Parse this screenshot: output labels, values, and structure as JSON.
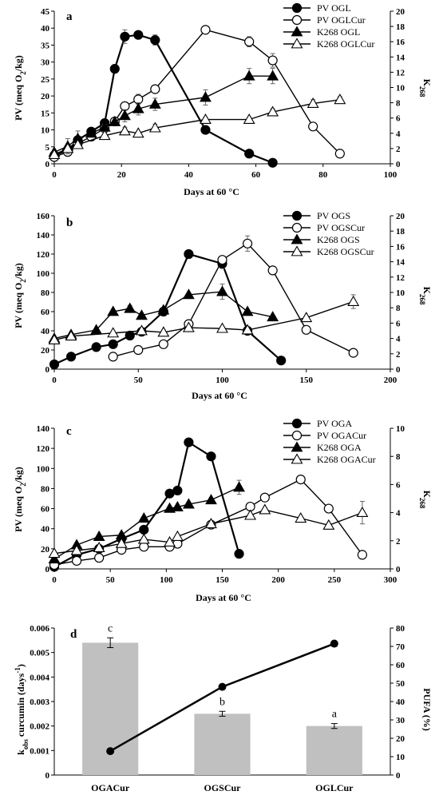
{
  "chart_data": [
    {
      "panel": "a",
      "type": "line",
      "xlabel": "Days at 60 °C",
      "ylabel": "PV (meq O₂/kg)",
      "y2label": "K268",
      "xlim": [
        0,
        100
      ],
      "xticks": [
        0,
        20,
        40,
        60,
        80,
        100
      ],
      "ylim": [
        0,
        45
      ],
      "yticks": [
        0,
        5,
        10,
        15,
        20,
        25,
        30,
        35,
        40,
        45
      ],
      "y2lim": [
        0,
        20
      ],
      "y2ticks": [
        0,
        2,
        4,
        6,
        8,
        10,
        12,
        14,
        16,
        18,
        20
      ],
      "legend_position": "top-right",
      "series": [
        {
          "name": "PV OGL",
          "axis": "left",
          "marker": "circle-filled",
          "x": [
            0,
            4,
            7,
            11,
            15,
            18,
            21,
            25,
            30,
            45,
            58,
            65
          ],
          "y": [
            2.5,
            4,
            7,
            9.5,
            12,
            28,
            37.5,
            38,
            36.5,
            10,
            3,
            0.3
          ],
          "err": [
            0,
            0,
            0,
            1,
            0,
            0,
            2,
            0,
            1.5,
            0,
            0,
            0
          ]
        },
        {
          "name": "PV OGLCur",
          "axis": "left",
          "marker": "circle-open",
          "x": [
            0,
            4,
            7,
            11,
            15,
            18,
            21,
            25,
            30,
            45,
            58,
            65,
            77,
            85
          ],
          "y": [
            2,
            3.5,
            6,
            8,
            10.5,
            12.5,
            17,
            19,
            22,
            39.5,
            36,
            30.5,
            11,
            3
          ],
          "err": [
            0,
            0,
            0,
            0,
            0,
            0,
            0,
            1.5,
            0,
            0,
            1.5,
            2,
            0,
            0
          ]
        },
        {
          "name": "K268 OGL",
          "axis": "right",
          "marker": "triangle-filled",
          "x": [
            0,
            4,
            7,
            11,
            15,
            18,
            21,
            25,
            30,
            45,
            58,
            65
          ],
          "y": [
            1.5,
            2.3,
            3.3,
            4,
            4.8,
            5.5,
            6.3,
            7.2,
            7.8,
            8.7,
            11.5,
            11.5
          ],
          "err": [
            0.3,
            1,
            1,
            0,
            0.4,
            0.5,
            0.8,
            0.8,
            0.8,
            1,
            1,
            1
          ]
        },
        {
          "name": "K268 OGLCur",
          "axis": "right",
          "marker": "triangle-open",
          "x": [
            0,
            4,
            7,
            15,
            21,
            25,
            30,
            45,
            58,
            65,
            77,
            85
          ],
          "y": [
            1.2,
            2,
            2.5,
            3.7,
            4.3,
            4,
            4.7,
            5.8,
            5.8,
            6.8,
            7.9,
            8.4
          ],
          "err": [
            0,
            0,
            0,
            0.5,
            0.5,
            0,
            0.5,
            0,
            0,
            0.4,
            0.5,
            0.4
          ]
        }
      ]
    },
    {
      "panel": "b",
      "type": "line",
      "xlabel": "Days at 60 °C",
      "ylabel": "PV (meq O₂/kg)",
      "y2label": "K268",
      "xlim": [
        0,
        200
      ],
      "xticks": [
        0,
        50,
        100,
        150,
        200
      ],
      "ylim": [
        0,
        160
      ],
      "yticks": [
        0,
        20,
        40,
        60,
        80,
        100,
        120,
        140,
        160
      ],
      "y2lim": [
        0,
        20
      ],
      "y2ticks": [
        0,
        2,
        4,
        6,
        8,
        10,
        12,
        14,
        16,
        18,
        20
      ],
      "legend_position": "top-right",
      "series": [
        {
          "name": "PV OGS",
          "axis": "left",
          "marker": "circle-filled",
          "x": [
            0,
            10,
            25,
            35,
            45,
            52,
            65,
            80,
            100,
            115,
            135
          ],
          "y": [
            5,
            13,
            23,
            26,
            35,
            39,
            60,
            120,
            110,
            40,
            9
          ],
          "err": [
            0,
            0,
            0,
            0,
            0,
            0,
            0,
            0,
            5,
            0,
            0
          ]
        },
        {
          "name": "PV OGSCur",
          "axis": "left",
          "marker": "circle-open",
          "x": [
            35,
            50,
            65,
            80,
            100,
            115,
            130,
            150,
            178
          ],
          "y": [
            13,
            20,
            26,
            47,
            114,
            131,
            103,
            41,
            17
          ],
          "err": [
            0,
            0,
            0,
            0,
            4,
            8,
            0,
            0,
            0
          ]
        },
        {
          "name": "K268 OGS",
          "axis": "right",
          "marker": "triangle-filled",
          "x": [
            0,
            10,
            25,
            35,
            45,
            52,
            65,
            80,
            100,
            115,
            130
          ],
          "y": [
            4,
            4.5,
            5.1,
            7.5,
            7.9,
            7.0,
            7.7,
            9.7,
            10.1,
            7.5,
            6.8
          ],
          "err": [
            0,
            0,
            0,
            0,
            0.4,
            0,
            0,
            0,
            1,
            0,
            0
          ]
        },
        {
          "name": "K268 OGSCur",
          "axis": "right",
          "marker": "triangle-open",
          "x": [
            0,
            10,
            35,
            52,
            65,
            80,
            100,
            115,
            150,
            178
          ],
          "y": [
            3.8,
            4.3,
            4.7,
            5.0,
            4.8,
            5.4,
            5.3,
            5.1,
            6.7,
            8.8
          ],
          "err": [
            0,
            0,
            0,
            0,
            0,
            0,
            0,
            0,
            0,
            0.9
          ]
        }
      ]
    },
    {
      "panel": "c",
      "type": "line",
      "xlabel": "Days at 60 °C",
      "ylabel": "PV (meq O₂/kg)",
      "y2label": "K268",
      "xlim": [
        0,
        300
      ],
      "xticks": [
        0,
        50,
        100,
        150,
        200,
        250,
        300
      ],
      "ylim": [
        0,
        140
      ],
      "yticks": [
        0,
        20,
        40,
        60,
        80,
        100,
        120,
        140
      ],
      "y2lim": [
        0,
        10
      ],
      "y2ticks": [
        0,
        2,
        4,
        6,
        8,
        10
      ],
      "legend_position": "top-right",
      "series": [
        {
          "name": "PV OGA",
          "axis": "left",
          "marker": "circle-filled",
          "x": [
            0,
            20,
            40,
            60,
            80,
            103,
            110,
            120,
            140,
            165
          ],
          "y": [
            2,
            14,
            20,
            30,
            39,
            75,
            78,
            126,
            112,
            15
          ],
          "err": [
            0,
            0,
            0,
            0,
            0,
            0,
            0,
            0,
            0,
            0
          ]
        },
        {
          "name": "PV OGACur",
          "axis": "left",
          "marker": "circle-open",
          "x": [
            0,
            20,
            40,
            60,
            80,
            103,
            110,
            140,
            175,
            188,
            220,
            245,
            275
          ],
          "y": [
            4,
            8,
            11,
            19,
            22,
            22,
            25,
            44,
            62,
            71,
            89,
            60,
            14
          ],
          "err": [
            0,
            0,
            0,
            0,
            0,
            0,
            0,
            0,
            0,
            0,
            0,
            0,
            0
          ]
        },
        {
          "name": "K268 OGA",
          "axis": "right",
          "marker": "triangle-filled",
          "x": [
            0,
            20,
            40,
            60,
            80,
            103,
            110,
            120,
            140,
            165
          ],
          "y": [
            0.7,
            1.7,
            2.3,
            2.4,
            3.6,
            4.3,
            4.4,
            4.6,
            4.9,
            5.8
          ],
          "err": [
            0,
            0,
            0,
            0,
            0,
            0,
            0,
            0,
            0,
            0.5
          ]
        },
        {
          "name": "K268 OGACur",
          "axis": "right",
          "marker": "triangle-open",
          "x": [
            0,
            20,
            40,
            60,
            80,
            103,
            110,
            140,
            175,
            188,
            220,
            245,
            275
          ],
          "y": [
            1.1,
            1.3,
            1.5,
            1.8,
            2.1,
            1.9,
            2.3,
            3.2,
            3.8,
            4.2,
            3.6,
            3.1,
            4.0
          ],
          "err": [
            0,
            0,
            0,
            0,
            0,
            0,
            0,
            0,
            0,
            0,
            0,
            0,
            0.8
          ]
        }
      ]
    },
    {
      "panel": "d",
      "type": "bar",
      "categories": [
        "OGACur",
        "OGSCur",
        "OGLCur"
      ],
      "ylabel": "k_obs curcumin (days⁻¹)",
      "y2label": "PUFA (%)",
      "ylim": [
        0,
        0.006
      ],
      "yticks": [
        0,
        0.001,
        0.002,
        0.003,
        0.004,
        0.005,
        0.006
      ],
      "y2lim": [
        0,
        80
      ],
      "y2ticks": [
        0,
        10,
        20,
        30,
        40,
        50,
        60,
        70,
        80
      ],
      "bar_color": "#c0c0c0",
      "bars": {
        "values": [
          0.0054,
          0.0025,
          0.002
        ],
        "err": [
          0.0002,
          0.0001,
          0.0001
        ],
        "labels": [
          "c",
          "b",
          "a"
        ]
      },
      "line": {
        "axis": "right",
        "values": [
          13,
          48,
          71.5
        ]
      }
    }
  ],
  "ui": {
    "panel_labels": [
      "a",
      "b",
      "c",
      "d"
    ],
    "y_label_pv": "PV (meq O",
    "y_label_pv_sub": "2",
    "y_label_pv_end": "/kg)",
    "y2_label_main": "K",
    "y2_label_sub": "268",
    "x_label_days": "Days at 60 °C",
    "d_ylabel_main": "k",
    "d_ylabel_sub": "obs",
    "d_ylabel_rest": " curcumin (days",
    "d_ylabel_sup": "-1",
    "d_ylabel_end": ")",
    "d_y2label": "PUFA (%)"
  }
}
